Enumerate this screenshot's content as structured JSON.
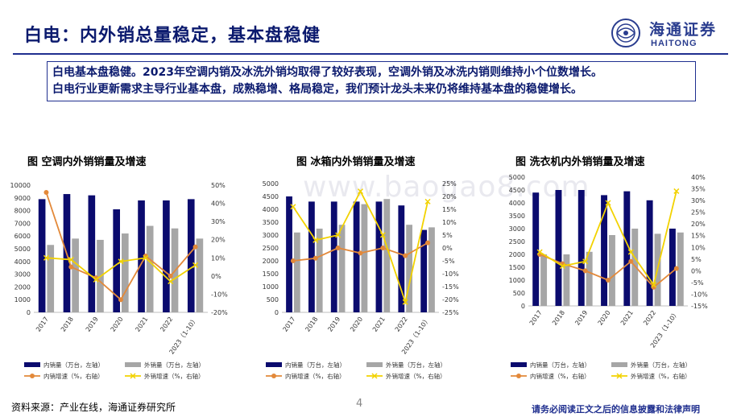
{
  "header": {
    "title": "白电：内外销总量稳定，基本盘稳健",
    "logo_cn": "海通证券",
    "logo_en": "HAITONG"
  },
  "summary": {
    "line1": "白电基本盘稳健。2023年空调内销及冰洗外销均取得了较好表现，空调外销及冰洗内销则维持小个位数增长。",
    "line2": "白电行业更新需求主导行业基本盘，成熟稳增、格局稳定，我们预计龙头未来仍将维持基本盘的稳健增长。"
  },
  "watermark": "www.baogao8.com",
  "colors": {
    "domestic": "#0b0b6e",
    "export": "#a6a6a6",
    "domestic_growth": "#e3893a",
    "export_growth": "#f2d200",
    "accent": "#1f2f8f"
  },
  "chart_data": [
    {
      "type": "bar",
      "title": "图 空调内外销销量及增速",
      "categories": [
        "2017",
        "2018",
        "2019",
        "2020",
        "2021",
        "2022",
        "2023（1-10）"
      ],
      "ylim": [
        0,
        10000
      ],
      "y_ticks": [
        "0",
        "1000",
        "2000",
        "3000",
        "4000",
        "5000",
        "6000",
        "7000",
        "8000",
        "9000",
        "10000"
      ],
      "y2lim": [
        -20,
        50
      ],
      "y2_ticks": [
        "-20%",
        "-10%",
        "0%",
        "10%",
        "20%",
        "30%",
        "40%",
        "50%"
      ],
      "series": [
        {
          "name": "内销量（万台，左轴）",
          "kind": "bar",
          "axis": "left",
          "values": [
            8900,
            9300,
            9200,
            8100,
            8800,
            8800,
            8900
          ]
        },
        {
          "name": "外销量（万台，左轴）",
          "kind": "bar",
          "axis": "left",
          "values": [
            5300,
            5800,
            5700,
            6200,
            6800,
            6600,
            5800
          ]
        },
        {
          "name": "内销增速（%，右轴）",
          "kind": "line",
          "axis": "right",
          "values": [
            46,
            5,
            -1,
            -13,
            11,
            0,
            16
          ]
        },
        {
          "name": "外销增速（%，右轴）",
          "kind": "line",
          "axis": "right",
          "values": [
            10,
            9,
            -2,
            8,
            10,
            -3,
            6
          ]
        }
      ]
    },
    {
      "type": "bar",
      "title": "图 冰箱内外销销量及增速",
      "categories": [
        "2017",
        "2018",
        "2019",
        "2020",
        "2021",
        "2022",
        "2023（1-10）"
      ],
      "ylim": [
        0,
        5000
      ],
      "y_ticks": [
        "0",
        "500",
        "1000",
        "1500",
        "2000",
        "2500",
        "3000",
        "3500",
        "4000",
        "4500",
        "5000"
      ],
      "y2lim": [
        -25,
        25
      ],
      "y2_ticks": [
        "-25%",
        "-20%",
        "-15%",
        "-10%",
        "-5%",
        "0%",
        "5%",
        "10%",
        "15%",
        "20%",
        "25%"
      ],
      "series": [
        {
          "name": "内销量（万台，左轴）",
          "kind": "bar",
          "axis": "left",
          "values": [
            4500,
            4300,
            4300,
            4300,
            4300,
            4150,
            3200
          ]
        },
        {
          "name": "外销量（万台，左轴）",
          "kind": "bar",
          "axis": "left",
          "values": [
            3100,
            3250,
            3400,
            4200,
            4400,
            3400,
            3300
          ]
        },
        {
          "name": "内销增速（%，右轴）",
          "kind": "line",
          "axis": "right",
          "values": [
            -5,
            -4,
            0,
            -2,
            0,
            -3,
            2
          ]
        },
        {
          "name": "外销增速（%，右轴）",
          "kind": "line",
          "axis": "right",
          "values": [
            16,
            3,
            5,
            22,
            5,
            -21,
            18
          ]
        }
      ]
    },
    {
      "type": "bar",
      "title": "图 洗衣机内外销销量及增速",
      "categories": [
        "2017",
        "2018",
        "2019",
        "2020",
        "2021",
        "2022",
        "2023（1-10）"
      ],
      "ylim": [
        0,
        5000
      ],
      "y_ticks": [
        "0",
        "500",
        "1000",
        "1500",
        "2000",
        "2500",
        "3000",
        "3500",
        "4000",
        "4500",
        "5000"
      ],
      "y2lim": [
        -15,
        40
      ],
      "y2_ticks": [
        "-15%",
        "-10%",
        "-5%",
        "0%",
        "5%",
        "10%",
        "15%",
        "20%",
        "25%",
        "30%",
        "35%",
        "40%"
      ],
      "series": [
        {
          "name": "内销量（万台，左轴）",
          "kind": "bar",
          "axis": "left",
          "values": [
            4400,
            4500,
            4500,
            4300,
            4450,
            4100,
            3000
          ]
        },
        {
          "name": "外销量（万台，左轴）",
          "kind": "bar",
          "axis": "left",
          "values": [
            2000,
            2000,
            2100,
            2750,
            3000,
            2800,
            2850
          ]
        },
        {
          "name": "内销增速（%，右轴）",
          "kind": "line",
          "axis": "right",
          "values": [
            7,
            3,
            0,
            -4,
            4,
            -7,
            1
          ]
        },
        {
          "name": "外销增速（%，右轴）",
          "kind": "line",
          "axis": "right",
          "values": [
            8,
            2,
            4,
            29,
            8,
            -6,
            34
          ]
        }
      ]
    }
  ],
  "footer": {
    "source": "资料来源：产业在线，海通证券研究所",
    "page": "4",
    "disclaimer": "请务必阅读正文之后的信息披露和法律声明"
  }
}
